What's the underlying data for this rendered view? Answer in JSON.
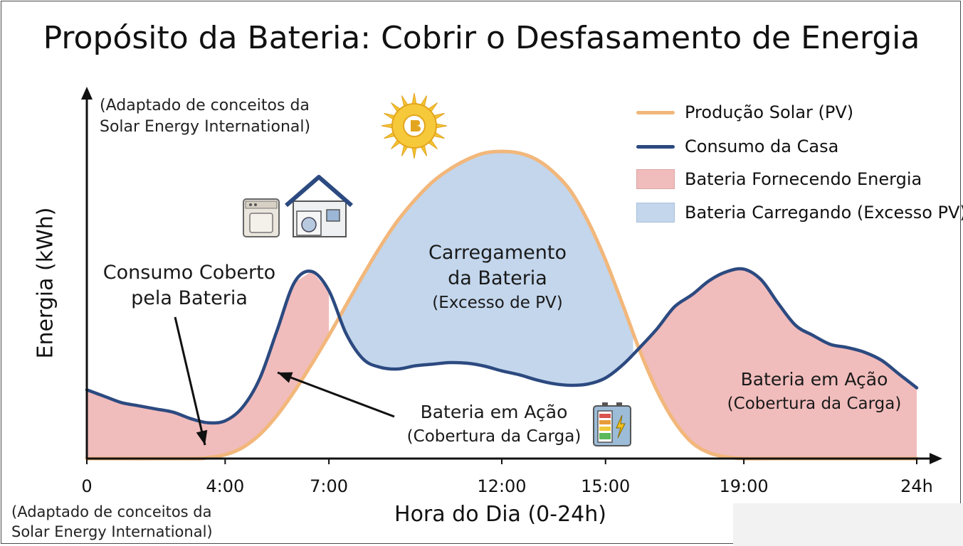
{
  "title": "Propósito da Bateria: Cobrir o Desfasamento de Energia",
  "note_top": [
    "(Adaptado de conceitos da",
    "Solar Energy International)"
  ],
  "note_bottom": [
    "(Adaptado de conceitos da",
    "Solar Energy International)"
  ],
  "annotations": {
    "covered": [
      "Consumo Coberto",
      "pela Bateria"
    ],
    "charging": [
      "Carregamento",
      "da Bateria",
      "(Excesso de PV)"
    ],
    "battery_mid": [
      "Bateria em Ação",
      "(Cobertura da Carga)"
    ],
    "battery_right": [
      "Bateria em Ação",
      "(Cobertura da Carga)"
    ]
  },
  "legend": [
    {
      "label": "Produção Solar (PV)",
      "kind": "line",
      "color": "#f2b77b"
    },
    {
      "label": "Consumo da Casa",
      "kind": "line",
      "color": "#2c4a80"
    },
    {
      "label": "Bateria Fornecendo Energia",
      "kind": "box",
      "color": "#f1bcbc"
    },
    {
      "label": "Bateria Carregando (Excesso PV)",
      "kind": "box",
      "color": "#c3d6ec"
    }
  ],
  "icons": [
    "sun-badge-icon",
    "washing-machine-icon",
    "house-icon",
    "battery-icon"
  ],
  "chart_data": {
    "type": "area",
    "title": "Propósito da Bateria: Cobrir o Desfasamento de Energia",
    "xlabel": "Hora do Dia (0-24h)",
    "ylabel": "Energia (kWh)",
    "x_ticks": [
      "0",
      "4:00",
      "7:00",
      "12:00",
      "15:00",
      "19:00",
      "24h"
    ],
    "xlim": [
      0,
      24
    ],
    "y_ticks": [],
    "series": [
      {
        "name": "Produção Solar (PV)",
        "color": "#f2b77b",
        "x": [
          0,
          3,
          3.5,
          4,
          4.5,
          5,
          5.5,
          6,
          6.5,
          7,
          7.5,
          8,
          8.5,
          9,
          9.5,
          10,
          10.5,
          11,
          11.5,
          12,
          12.5,
          13,
          13.5,
          14,
          14.5,
          15,
          15.5,
          16,
          16.5,
          17,
          17.5,
          18,
          18.5,
          19,
          20,
          24
        ],
        "y": [
          0,
          0,
          0.3,
          1.2,
          3.4,
          7.5,
          13.5,
          21,
          29.5,
          38.5,
          48,
          57.5,
          66.5,
          74.5,
          81,
          86.5,
          90.5,
          93.5,
          95.5,
          96,
          95.5,
          93.5,
          89.5,
          83.5,
          74,
          62,
          48,
          33.5,
          21,
          11.5,
          5,
          1.8,
          0.5,
          0,
          0,
          0
        ]
      },
      {
        "name": "Consumo da Casa",
        "color": "#2c4a80",
        "x": [
          0,
          0.5,
          1,
          1.5,
          2,
          2.5,
          3,
          3.5,
          4,
          4.5,
          5,
          5.5,
          6,
          6.5,
          7,
          7.5,
          8,
          8.5,
          9,
          9.5,
          10,
          10.5,
          11,
          11.5,
          12,
          12.5,
          13,
          13.5,
          14,
          14.5,
          15,
          15.5,
          16,
          16.5,
          17,
          17.5,
          18,
          18.5,
          19,
          19.5,
          20,
          20.5,
          21,
          21.5,
          22,
          22.5,
          23,
          23.5,
          24
        ],
        "y": [
          21.5,
          19.5,
          17.5,
          16.5,
          15.5,
          14.5,
          12.5,
          11.2,
          11.8,
          16,
          25,
          40,
          55,
          58.5,
          52.5,
          39,
          31,
          28.5,
          28,
          29,
          29.5,
          30,
          29.8,
          28.9,
          27.4,
          26.2,
          24.6,
          23.4,
          22.9,
          23.3,
          25.2,
          29.3,
          34.8,
          40.7,
          47.5,
          51.2,
          55.6,
          58.4,
          59.2,
          55.9,
          48.4,
          41.6,
          38.5,
          35.7,
          34.7,
          33.2,
          30.6,
          26.3,
          22.1
        ]
      }
    ],
    "regions": [
      {
        "name": "Bateria Fornecendo Energia",
        "x_range": [
          0,
          7
        ],
        "color": "#f1bcbc"
      },
      {
        "name": "Bateria Carregando (Excesso PV)",
        "x_range": [
          7,
          15.8
        ],
        "color": "#c3d6ec"
      },
      {
        "name": "Bateria Fornecendo Energia",
        "x_range": [
          15.8,
          24
        ],
        "color": "#f1bcbc"
      }
    ]
  }
}
